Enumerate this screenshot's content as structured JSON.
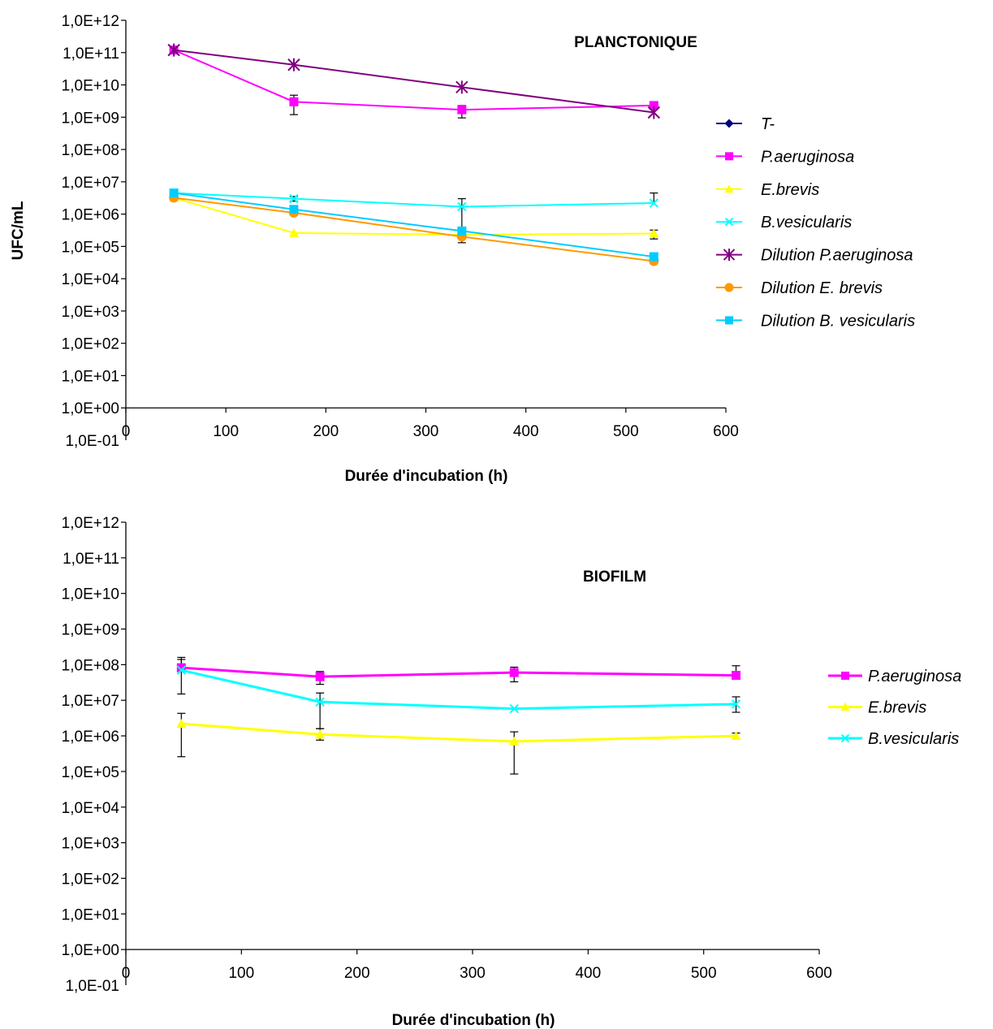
{
  "chart_data": [
    {
      "type": "line",
      "title": "PLANCTONIQUE",
      "xlabel": "Durée d'incubation (h)",
      "ylabel": "UFC/mL",
      "y_scale": "log",
      "xlim": [
        0,
        600
      ],
      "ylim": [
        0.1,
        1000000000000
      ],
      "x_ticks": [
        "0",
        "100",
        "200",
        "300",
        "400",
        "500",
        "600"
      ],
      "y_ticks": [
        "1,0E-01",
        "1,0E+00",
        "1,0E+01",
        "1,0E+02",
        "1,0E+03",
        "1,0E+04",
        "1,0E+05",
        "1,0E+06",
        "1,0E+07",
        "1,0E+08",
        "1,0E+09",
        "1,0E+10",
        "1,0E+11",
        "1,0E+12"
      ],
      "legend_position": "right",
      "grid": false,
      "series": [
        {
          "name": "T-",
          "color": "#000080",
          "marker": "diamond",
          "x": [],
          "y": []
        },
        {
          "name": "P.aeruginosa",
          "color": "#ff00ff",
          "marker": "square",
          "x": [
            48,
            168,
            336,
            528
          ],
          "y": [
            120000000000,
            3000000000,
            1700000000,
            2300000000
          ],
          "err_low": [
            null,
            1200000000,
            950000000,
            null
          ],
          "err_high": [
            null,
            4800000000,
            2300000000,
            null
          ]
        },
        {
          "name": "E.brevis",
          "color": "#ffff00",
          "marker": "triangle",
          "x": [
            48,
            168,
            336,
            528
          ],
          "y": [
            3200000,
            260000,
            230000,
            250000
          ],
          "err_low": [
            null,
            null,
            130000,
            170000
          ],
          "err_high": [
            null,
            null,
            3000000,
            320000
          ]
        },
        {
          "name": "B.vesicularis",
          "color": "#00ffff",
          "marker": "x",
          "x": [
            48,
            168,
            336,
            528
          ],
          "y": [
            4500000,
            3000000,
            1700000,
            2200000
          ],
          "err_low": [
            null,
            2500000,
            null,
            null
          ],
          "err_high": [
            null,
            3500000,
            null,
            4500000
          ]
        },
        {
          "name": "Dilution P.aeruginosa",
          "color": "#800080",
          "marker": "star",
          "x": [
            48,
            168,
            336,
            528
          ],
          "y": [
            120000000000,
            42000000000,
            8500000000,
            1400000000
          ]
        },
        {
          "name": "Dilution E. brevis",
          "color": "#ff9900",
          "marker": "circle",
          "x": [
            48,
            168,
            336,
            528
          ],
          "y": [
            3200000,
            1100000,
            200000,
            35000
          ]
        },
        {
          "name": "Dilution B. vesicularis",
          "color": "#00ccff",
          "marker": "square",
          "x": [
            48,
            168,
            336,
            528
          ],
          "y": [
            4500000,
            1400000,
            300000,
            48000
          ]
        }
      ]
    },
    {
      "type": "line",
      "title": "BIOFILM",
      "xlabel": "Durée d'incubation (h)",
      "ylabel": "",
      "y_scale": "log",
      "xlim": [
        0,
        600
      ],
      "ylim": [
        0.1,
        1000000000000
      ],
      "x_ticks": [
        "0",
        "100",
        "200",
        "300",
        "400",
        "500",
        "600"
      ],
      "y_ticks": [
        "1,0E-01",
        "1,0E+00",
        "1,0E+01",
        "1,0E+02",
        "1,0E+03",
        "1,0E+04",
        "1,0E+05",
        "1,0E+06",
        "1,0E+07",
        "1,0E+08",
        "1,0E+09",
        "1,0E+10",
        "1,0E+11",
        "1,0E+12"
      ],
      "legend_position": "right",
      "grid": false,
      "series": [
        {
          "name": "P.aeruginosa",
          "color": "#ff00ff",
          "marker": "square",
          "x": [
            48,
            168,
            336,
            528
          ],
          "y": [
            82000000,
            46000000,
            60000000,
            50000000
          ],
          "err_low": [
            null,
            28000000,
            33000000,
            null
          ],
          "err_high": [
            160000000,
            64000000,
            85000000,
            93000000
          ]
        },
        {
          "name": "E.brevis",
          "color": "#ffff00",
          "marker": "triangle",
          "x": [
            48,
            168,
            336,
            528
          ],
          "y": [
            2200000,
            1100000,
            700000,
            1000000
          ],
          "err_low": [
            260000,
            760000,
            85000,
            830000
          ],
          "err_high": [
            4300000,
            1600000,
            1300000,
            1200000
          ]
        },
        {
          "name": "B.vesicularis",
          "color": "#00ffff",
          "marker": "x",
          "x": [
            48,
            168,
            336,
            528
          ],
          "y": [
            70000000,
            9000000,
            5800000,
            7800000
          ],
          "err_low": [
            15000000,
            1600000,
            null,
            4600000
          ],
          "err_high": [
            140000000,
            16000000,
            null,
            12500000
          ]
        }
      ]
    }
  ]
}
